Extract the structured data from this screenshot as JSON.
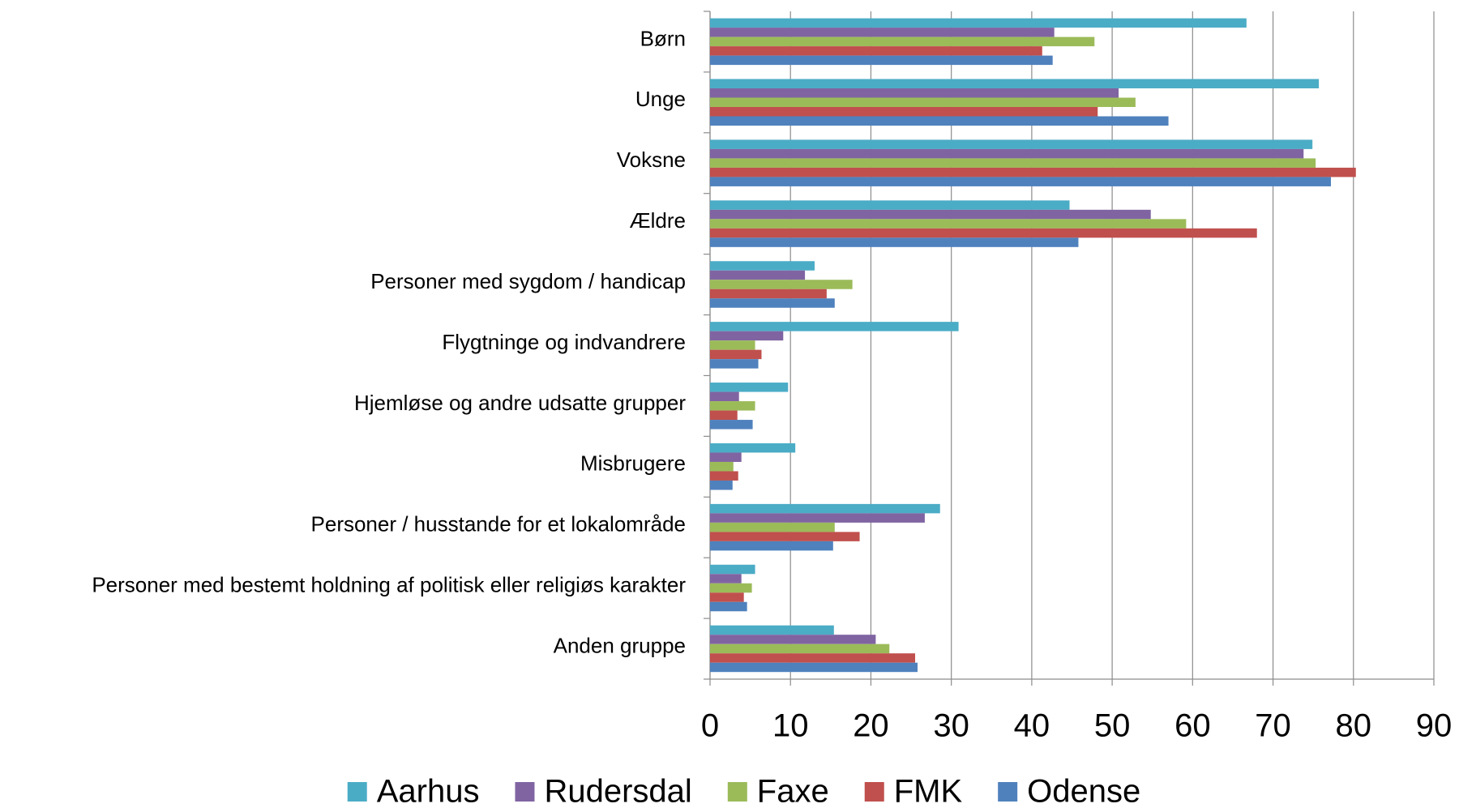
{
  "chart_data": {
    "type": "barh",
    "categories": [
      "Børn",
      "Unge",
      "Voksne",
      "Ældre",
      "Personer med sygdom / handicap",
      "Flygtninge og indvandrere",
      "Hjemløse og andre udsatte grupper",
      "Misbrugere",
      "Personer / husstande for et lokalområde",
      "Personer med bestemt holdning af politisk eller religiøs karakter",
      "Anden gruppe"
    ],
    "series": [
      {
        "name": "Aarhus",
        "color": "#4bacc6",
        "values": [
          66.7,
          75.7,
          74.9,
          44.7,
          13.0,
          30.9,
          9.7,
          10.6,
          28.6,
          5.6,
          15.4
        ]
      },
      {
        "name": "Rudersdal",
        "color": "#8064a2",
        "values": [
          42.8,
          50.8,
          73.8,
          54.8,
          11.8,
          9.1,
          3.6,
          3.9,
          26.7,
          3.9,
          20.6
        ]
      },
      {
        "name": "Faxe",
        "color": "#9bbb59",
        "values": [
          47.8,
          52.9,
          75.3,
          59.2,
          17.7,
          5.6,
          5.6,
          2.9,
          15.5,
          5.2,
          22.3
        ]
      },
      {
        "name": "FMK",
        "color": "#c0504d",
        "values": [
          41.3,
          48.2,
          80.3,
          68.0,
          14.5,
          6.4,
          3.4,
          3.5,
          18.6,
          4.2,
          25.5
        ]
      },
      {
        "name": "Odense",
        "color": "#4f81bd",
        "values": [
          42.6,
          57.0,
          77.2,
          45.8,
          15.5,
          6.0,
          5.3,
          2.8,
          15.3,
          4.6,
          25.8
        ]
      }
    ],
    "xlim": [
      0,
      90
    ],
    "xticks": [
      0,
      10,
      20,
      30,
      40,
      50,
      60,
      70,
      80,
      90
    ],
    "grid": true,
    "legend": "bottom"
  }
}
